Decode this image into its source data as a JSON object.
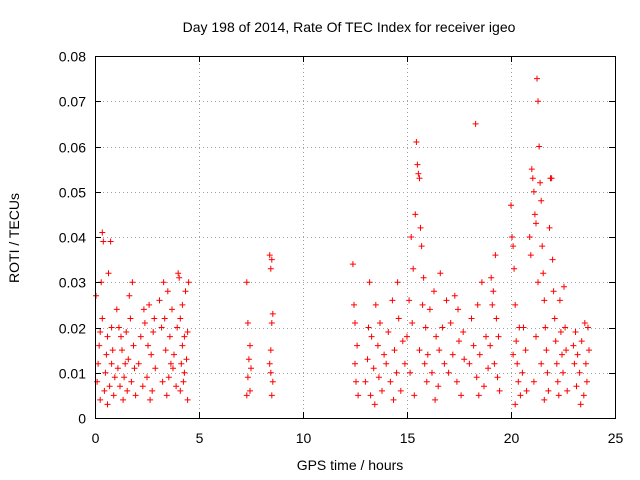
{
  "chart_data": {
    "type": "scatter",
    "title": "Day 198 of 2014, Rate Of TEC Index for receiver igeo",
    "xlabel": "GPS time / hours",
    "ylabel": "ROTI / TECUs",
    "xlim": [
      0,
      25
    ],
    "ylim": [
      0,
      0.08
    ],
    "xticks": [
      0,
      5,
      10,
      15,
      20,
      25
    ],
    "xtick_labels": [
      "0",
      "5",
      "10",
      "15",
      "20",
      "25"
    ],
    "yticks": [
      0,
      0.01,
      0.02,
      0.03,
      0.04,
      0.05,
      0.06,
      0.07,
      0.08
    ],
    "ytick_labels": [
      "0",
      "0.01",
      "0.02",
      "0.03",
      "0.04",
      "0.05",
      "0.06",
      "0.07",
      "0.08"
    ],
    "grid": true,
    "marker": "+",
    "color": "#ff0000",
    "series": [
      {
        "name": "ROTI",
        "points": [
          [
            0.05,
            0.027
          ],
          [
            0.1,
            0.008
          ],
          [
            0.15,
            0.012
          ],
          [
            0.2,
            0.016
          ],
          [
            0.25,
            0.004
          ],
          [
            0.3,
            0.03
          ],
          [
            0.35,
            0.041
          ],
          [
            0.4,
            0.039
          ],
          [
            0.45,
            0.006
          ],
          [
            0.5,
            0.01
          ],
          [
            0.55,
            0.014
          ],
          [
            0.6,
            0.018
          ],
          [
            0.65,
            0.032
          ],
          [
            0.7,
            0.007
          ],
          [
            0.75,
            0.039
          ],
          [
            0.8,
            0.012
          ],
          [
            0.85,
            0.015
          ],
          [
            0.9,
            0.005
          ],
          [
            0.95,
            0.009
          ],
          [
            0.35,
            0.022
          ],
          [
            0.6,
            0.003
          ],
          [
            0.25,
            0.019
          ],
          [
            0.8,
            0.02
          ],
          [
            1.05,
            0.024
          ],
          [
            1.1,
            0.011
          ],
          [
            1.2,
            0.007
          ],
          [
            1.3,
            0.015
          ],
          [
            1.4,
            0.009
          ],
          [
            1.5,
            0.019
          ],
          [
            1.55,
            0.006
          ],
          [
            1.6,
            0.013
          ],
          [
            1.7,
            0.022
          ],
          [
            1.75,
            0.008
          ],
          [
            1.8,
            0.03
          ],
          [
            1.85,
            0.016
          ],
          [
            1.9,
            0.011
          ],
          [
            1.95,
            0.005
          ],
          [
            1.65,
            0.027
          ],
          [
            1.25,
            0.018
          ],
          [
            1.45,
            0.012
          ],
          [
            1.35,
            0.004
          ],
          [
            1.15,
            0.02
          ],
          [
            2.1,
            0.012
          ],
          [
            2.2,
            0.018
          ],
          [
            2.3,
            0.007
          ],
          [
            2.4,
            0.021
          ],
          [
            2.5,
            0.009
          ],
          [
            2.6,
            0.025
          ],
          [
            2.7,
            0.014
          ],
          [
            2.75,
            0.006
          ],
          [
            2.8,
            0.019
          ],
          [
            2.9,
            0.011
          ],
          [
            2.35,
            0.024
          ],
          [
            2.55,
            0.016
          ],
          [
            2.65,
            0.004
          ],
          [
            2.85,
            0.022
          ],
          [
            3.1,
            0.026
          ],
          [
            3.2,
            0.02
          ],
          [
            3.25,
            0.008
          ],
          [
            3.3,
            0.03
          ],
          [
            3.4,
            0.015
          ],
          [
            3.5,
            0.028
          ],
          [
            3.55,
            0.009
          ],
          [
            3.6,
            0.018
          ],
          [
            3.7,
            0.024
          ],
          [
            3.75,
            0.011
          ],
          [
            3.8,
            0.014
          ],
          [
            3.9,
            0.007
          ],
          [
            3.95,
            0.02
          ],
          [
            3.45,
            0.005
          ],
          [
            3.65,
            0.012
          ],
          [
            3.35,
            0.022
          ],
          [
            4.0,
            0.032
          ],
          [
            4.05,
            0.031
          ],
          [
            4.1,
            0.022
          ],
          [
            4.15,
            0.012
          ],
          [
            4.2,
            0.016
          ],
          [
            4.25,
            0.008
          ],
          [
            4.3,
            0.018
          ],
          [
            4.35,
            0.028
          ],
          [
            4.4,
            0.013
          ],
          [
            4.45,
            0.004
          ],
          [
            4.5,
            0.03
          ],
          [
            4.1,
            0.006
          ],
          [
            4.3,
            0.01
          ],
          [
            4.45,
            0.019
          ],
          [
            4.2,
            0.025
          ],
          [
            7.3,
            0.03
          ],
          [
            7.35,
            0.021
          ],
          [
            7.4,
            0.013
          ],
          [
            7.45,
            0.006
          ],
          [
            7.5,
            0.011
          ],
          [
            7.35,
            0.009
          ],
          [
            7.45,
            0.016
          ],
          [
            7.3,
            0.005
          ],
          [
            8.4,
            0.036
          ],
          [
            8.45,
            0.033
          ],
          [
            8.5,
            0.035
          ],
          [
            8.55,
            0.023
          ],
          [
            8.5,
            0.021
          ],
          [
            8.45,
            0.015
          ],
          [
            8.4,
            0.012
          ],
          [
            8.55,
            0.008
          ],
          [
            8.5,
            0.005
          ],
          [
            8.45,
            0.01
          ],
          [
            12.4,
            0.034
          ],
          [
            12.45,
            0.025
          ],
          [
            12.5,
            0.012
          ],
          [
            12.55,
            0.008
          ],
          [
            12.6,
            0.016
          ],
          [
            12.65,
            0.005
          ],
          [
            12.5,
            0.021
          ],
          [
            13.0,
            0.008
          ],
          [
            13.1,
            0.013
          ],
          [
            13.2,
            0.03
          ],
          [
            13.25,
            0.005
          ],
          [
            13.3,
            0.018
          ],
          [
            13.4,
            0.011
          ],
          [
            13.5,
            0.025
          ],
          [
            13.6,
            0.016
          ],
          [
            13.65,
            0.009
          ],
          [
            13.7,
            0.021
          ],
          [
            13.8,
            0.006
          ],
          [
            13.9,
            0.014
          ],
          [
            13.45,
            0.003
          ],
          [
            13.15,
            0.02
          ],
          [
            14.0,
            0.012
          ],
          [
            14.1,
            0.019
          ],
          [
            14.2,
            0.008
          ],
          [
            14.3,
            0.026
          ],
          [
            14.4,
            0.015
          ],
          [
            14.5,
            0.01
          ],
          [
            14.6,
            0.022
          ],
          [
            14.7,
            0.006
          ],
          [
            14.8,
            0.017
          ],
          [
            14.9,
            0.012
          ],
          [
            14.35,
            0.004
          ],
          [
            14.55,
            0.03
          ],
          [
            15.0,
            0.018
          ],
          [
            15.1,
            0.026
          ],
          [
            15.2,
            0.04
          ],
          [
            15.3,
            0.033
          ],
          [
            15.4,
            0.045
          ],
          [
            15.45,
            0.061
          ],
          [
            15.5,
            0.056
          ],
          [
            15.55,
            0.054
          ],
          [
            15.6,
            0.053
          ],
          [
            15.65,
            0.042
          ],
          [
            15.7,
            0.038
          ],
          [
            15.75,
            0.025
          ],
          [
            15.8,
            0.031
          ],
          [
            15.85,
            0.012
          ],
          [
            15.9,
            0.02
          ],
          [
            15.95,
            0.008
          ],
          [
            15.15,
            0.01
          ],
          [
            15.35,
            0.005
          ],
          [
            15.6,
            0.015
          ],
          [
            15.25,
            0.021
          ],
          [
            16.0,
            0.014
          ],
          [
            16.1,
            0.024
          ],
          [
            16.2,
            0.01
          ],
          [
            16.3,
            0.028
          ],
          [
            16.4,
            0.018
          ],
          [
            16.5,
            0.007
          ],
          [
            16.6,
            0.032
          ],
          [
            16.7,
            0.02
          ],
          [
            16.8,
            0.012
          ],
          [
            16.9,
            0.026
          ],
          [
            16.35,
            0.004
          ],
          [
            16.55,
            0.015
          ],
          [
            17.0,
            0.01
          ],
          [
            17.1,
            0.021
          ],
          [
            17.2,
            0.014
          ],
          [
            17.3,
            0.027
          ],
          [
            17.4,
            0.008
          ],
          [
            17.5,
            0.017
          ],
          [
            17.6,
            0.005
          ],
          [
            17.7,
            0.019
          ],
          [
            17.75,
            0.013
          ],
          [
            17.45,
            0.024
          ],
          [
            18.0,
            0.012
          ],
          [
            18.1,
            0.022
          ],
          [
            18.2,
            0.016
          ],
          [
            18.3,
            0.065
          ],
          [
            18.35,
            0.009
          ],
          [
            18.4,
            0.025
          ],
          [
            18.5,
            0.014
          ],
          [
            18.6,
            0.03
          ],
          [
            18.7,
            0.007
          ],
          [
            18.8,
            0.018
          ],
          [
            18.9,
            0.011
          ],
          [
            18.45,
            0.005
          ],
          [
            19.0,
            0.016
          ],
          [
            19.05,
            0.031
          ],
          [
            19.1,
            0.025
          ],
          [
            19.2,
            0.012
          ],
          [
            19.25,
            0.036
          ],
          [
            19.3,
            0.022
          ],
          [
            19.35,
            0.009
          ],
          [
            19.4,
            0.018
          ],
          [
            19.45,
            0.006
          ],
          [
            19.15,
            0.028
          ],
          [
            20.0,
            0.047
          ],
          [
            20.05,
            0.04
          ],
          [
            20.1,
            0.038
          ],
          [
            20.15,
            0.033
          ],
          [
            20.2,
            0.025
          ],
          [
            20.25,
            0.017
          ],
          [
            20.3,
            0.012
          ],
          [
            20.35,
            0.008
          ],
          [
            20.4,
            0.02
          ],
          [
            20.45,
            0.005
          ],
          [
            20.2,
            0.003
          ],
          [
            20.1,
            0.014
          ],
          [
            20.55,
            0.01
          ],
          [
            20.6,
            0.02
          ],
          [
            20.7,
            0.015
          ],
          [
            20.75,
            0.006
          ],
          [
            20.9,
            0.04
          ],
          [
            20.95,
            0.036
          ],
          [
            21.0,
            0.055
          ],
          [
            21.05,
            0.053
          ],
          [
            21.1,
            0.05
          ],
          [
            21.15,
            0.045
          ],
          [
            21.2,
            0.043
          ],
          [
            21.25,
            0.075
          ],
          [
            21.3,
            0.07
          ],
          [
            21.35,
            0.06
          ],
          [
            21.4,
            0.052
          ],
          [
            21.45,
            0.048
          ],
          [
            21.5,
            0.038
          ],
          [
            21.55,
            0.032
          ],
          [
            21.6,
            0.026
          ],
          [
            21.65,
            0.02
          ],
          [
            21.7,
            0.015
          ],
          [
            21.75,
            0.01
          ],
          [
            21.8,
            0.006
          ],
          [
            21.85,
            0.042
          ],
          [
            21.9,
            0.053
          ],
          [
            21.95,
            0.053
          ],
          [
            21.3,
            0.03
          ],
          [
            21.2,
            0.018
          ],
          [
            21.45,
            0.012
          ],
          [
            21.1,
            0.008
          ],
          [
            21.6,
            0.004
          ],
          [
            22.0,
            0.035
          ],
          [
            22.05,
            0.028
          ],
          [
            22.1,
            0.022
          ],
          [
            22.15,
            0.017
          ],
          [
            22.2,
            0.012
          ],
          [
            22.25,
            0.008
          ],
          [
            22.3,
            0.005
          ],
          [
            22.35,
            0.026
          ],
          [
            22.4,
            0.019
          ],
          [
            22.45,
            0.014
          ],
          [
            22.5,
            0.01
          ],
          [
            22.6,
            0.02
          ],
          [
            22.7,
            0.006
          ],
          [
            22.55,
            0.029
          ],
          [
            22.65,
            0.015
          ],
          [
            23.0,
            0.016
          ],
          [
            23.05,
            0.012
          ],
          [
            23.1,
            0.019
          ],
          [
            23.15,
            0.007
          ],
          [
            23.2,
            0.014
          ],
          [
            23.3,
            0.01
          ],
          [
            23.4,
            0.017
          ],
          [
            23.5,
            0.005
          ],
          [
            23.55,
            0.021
          ],
          [
            23.6,
            0.012
          ],
          [
            23.65,
            0.008
          ],
          [
            23.7,
            0.02
          ],
          [
            23.75,
            0.015
          ],
          [
            23.35,
            0.003
          ]
        ]
      }
    ]
  }
}
